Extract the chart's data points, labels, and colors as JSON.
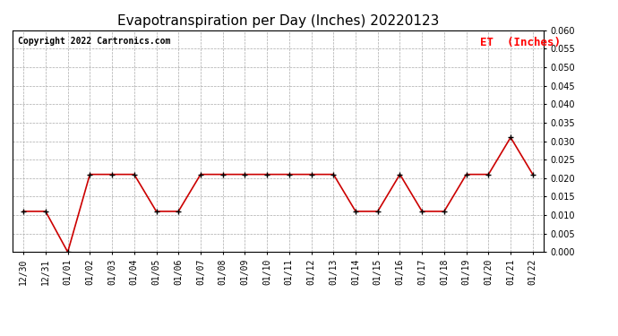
{
  "title": "Evapotranspiration per Day (Inches) 20220123",
  "copyright": "Copyright 2022 Cartronics.com",
  "legend_label": "ET  (Inches)",
  "legend_color": "#ff0000",
  "line_color": "#cc0000",
  "marker_color": "#000000",
  "background_color": "#ffffff",
  "dates": [
    "12/30",
    "12/31",
    "01/01",
    "01/02",
    "01/03",
    "01/04",
    "01/05",
    "01/06",
    "01/07",
    "01/08",
    "01/09",
    "01/10",
    "01/11",
    "01/12",
    "01/13",
    "01/14",
    "01/15",
    "01/16",
    "01/17",
    "01/18",
    "01/19",
    "01/20",
    "01/21",
    "01/22"
  ],
  "et_values": [
    0.011,
    0.011,
    0.0,
    0.021,
    0.021,
    0.021,
    0.011,
    0.011,
    0.021,
    0.021,
    0.021,
    0.021,
    0.021,
    0.021,
    0.021,
    0.011,
    0.011,
    0.021,
    0.011,
    0.011,
    0.021,
    0.021,
    0.031,
    0.021
  ],
  "ylim": [
    0.0,
    0.06
  ],
  "yticks": [
    0.0,
    0.005,
    0.01,
    0.015,
    0.02,
    0.025,
    0.03,
    0.035,
    0.04,
    0.045,
    0.05,
    0.055,
    0.06
  ],
  "title_fontsize": 11,
  "copyright_fontsize": 7,
  "legend_fontsize": 9,
  "tick_fontsize": 7
}
